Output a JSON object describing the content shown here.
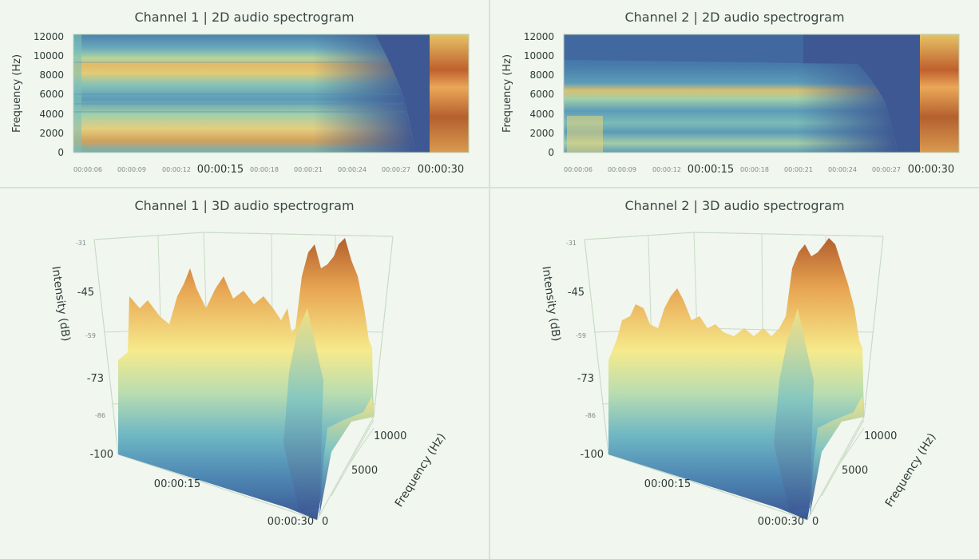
{
  "chart_data": [
    {
      "type": "heatmap",
      "title": "Channel 1 | 2D audio spectrogram",
      "ylabel": "Frequency (Hz)",
      "xlabel": "",
      "y_ticks": [
        "0",
        "2000",
        "4000",
        "6000",
        "8000",
        "10000",
        "12000"
      ],
      "ylim": [
        0,
        12000
      ],
      "x_ticks_minor": [
        "00:00:06",
        "00:00:09",
        "00:00:12",
        "00:00:18",
        "00:00:21",
        "00:00:24",
        "00:00:27"
      ],
      "x_ticks_major": [
        "00:00:15",
        "00:00:30"
      ],
      "colormap": [
        "#3b5796",
        "#4a90b5",
        "#6fc0c0",
        "#f2e68a",
        "#efb04c",
        "#b8602e"
      ]
    },
    {
      "type": "heatmap",
      "title": "Channel 2 | 2D audio spectrogram",
      "ylabel": "Frequency (Hz)",
      "xlabel": "",
      "y_ticks": [
        "0",
        "2000",
        "4000",
        "6000",
        "8000",
        "10000",
        "12000"
      ],
      "ylim": [
        0,
        12000
      ],
      "x_ticks_minor": [
        "00:00:06",
        "00:00:09",
        "00:00:12",
        "00:00:18",
        "00:00:21",
        "00:00:24",
        "00:00:27"
      ],
      "x_ticks_major": [
        "00:00:15",
        "00:00:30"
      ],
      "colormap": [
        "#3b5796",
        "#4a90b5",
        "#6fc0c0",
        "#f2e68a",
        "#efb04c",
        "#b8602e"
      ]
    },
    {
      "type": "surface",
      "title": "Channel 1 | 3D audio spectrogram",
      "zlabel": "Intensity (dB)",
      "ylabel": "Frequency (Hz)",
      "z_ticks_major": [
        "-45",
        "-73",
        "-100"
      ],
      "z_ticks_minor": [
        "-31",
        "-59",
        "-86"
      ],
      "x_ticks": [
        "00:00:15",
        "00:00:30"
      ],
      "y_ticks": [
        "0",
        "5000",
        "10000"
      ],
      "zlim": [
        -100,
        -31
      ]
    },
    {
      "type": "surface",
      "title": "Channel 2 | 3D audio spectrogram",
      "zlabel": "Intensity (dB)",
      "ylabel": "Frequency (Hz)",
      "z_ticks_major": [
        "-45",
        "-73",
        "-100"
      ],
      "z_ticks_minor": [
        "-31",
        "-59",
        "-86"
      ],
      "x_ticks": [
        "00:00:15",
        "00:00:30"
      ],
      "y_ticks": [
        "0",
        "5000",
        "10000"
      ],
      "zlim": [
        -100,
        -31
      ]
    }
  ]
}
